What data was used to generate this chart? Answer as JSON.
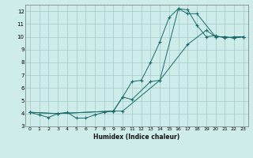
{
  "xlabel": "Humidex (Indice chaleur)",
  "bg_color": "#cdecea",
  "grid_color": "#aacfcd",
  "line_color": "#1a6b6b",
  "ylim": [
    3.0,
    12.5
  ],
  "xlim": [
    -0.5,
    23.5
  ],
  "yticks": [
    3,
    4,
    5,
    6,
    7,
    8,
    9,
    10,
    11,
    12
  ],
  "xticks": [
    0,
    1,
    2,
    3,
    4,
    5,
    6,
    7,
    8,
    9,
    10,
    11,
    12,
    13,
    14,
    15,
    16,
    17,
    18,
    19,
    20,
    21,
    22,
    23
  ],
  "line1_x": [
    0,
    1,
    2,
    3,
    4,
    5,
    6,
    7,
    8,
    9,
    10,
    11,
    12,
    13,
    14,
    15,
    16,
    17,
    18,
    19,
    20,
    21,
    22,
    23
  ],
  "line1_y": [
    4.1,
    3.9,
    3.7,
    4.0,
    4.1,
    3.65,
    3.65,
    3.9,
    4.1,
    4.2,
    5.3,
    6.5,
    6.6,
    8.0,
    9.6,
    11.5,
    12.2,
    12.1,
    10.9,
    10.0,
    10.1,
    9.9,
    10.0,
    10.0
  ],
  "line2_x": [
    0,
    3,
    9,
    10,
    11,
    13,
    14,
    16,
    17,
    18,
    20,
    21,
    22,
    23
  ],
  "line2_y": [
    4.1,
    4.0,
    4.2,
    5.3,
    5.1,
    6.5,
    6.6,
    12.2,
    11.8,
    11.8,
    10.0,
    10.0,
    9.9,
    10.0
  ],
  "line3_x": [
    0,
    3,
    9,
    10,
    14,
    17,
    19,
    20,
    21,
    22,
    23
  ],
  "line3_y": [
    4.1,
    4.0,
    4.2,
    4.2,
    6.6,
    9.4,
    10.5,
    10.0,
    10.0,
    9.9,
    10.0
  ]
}
